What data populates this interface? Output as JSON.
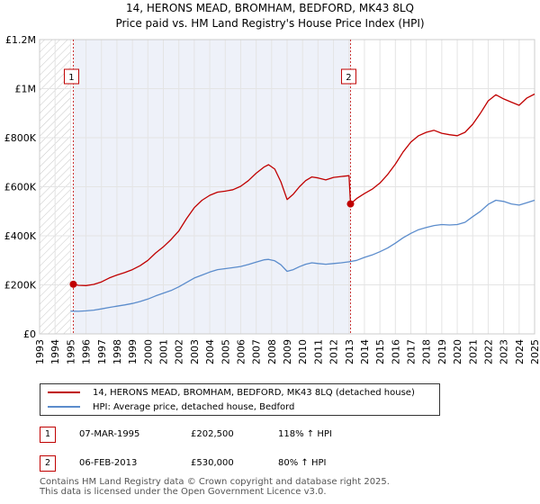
{
  "header": {
    "title": "14, HERONS MEAD, BROMHAM, BEDFORD, MK43 8LQ",
    "subtitle": "Price paid vs. HM Land Registry's House Price Index (HPI)"
  },
  "chart_data": {
    "type": "line",
    "title": "14, HERONS MEAD, BROMHAM, BEDFORD, MK43 8LQ",
    "subtitle": "Price paid vs. HM Land Registry's House Price Index (HPI)",
    "xlabel": "",
    "ylabel": "",
    "xlim": [
      1993,
      2025
    ],
    "ylim": [
      0,
      1200000
    ],
    "x_ticks": [
      "1993",
      "1994",
      "1995",
      "1996",
      "1997",
      "1998",
      "1999",
      "2000",
      "2001",
      "2002",
      "2003",
      "2004",
      "2005",
      "2006",
      "2007",
      "2008",
      "2009",
      "2010",
      "2011",
      "2012",
      "2013",
      "2014",
      "2015",
      "2016",
      "2017",
      "2018",
      "2019",
      "2020",
      "2021",
      "2022",
      "2023",
      "2024",
      "2025"
    ],
    "y_ticks": [
      {
        "value": 0,
        "label": "£0"
      },
      {
        "value": 200000,
        "label": "£200K"
      },
      {
        "value": 400000,
        "label": "£400K"
      },
      {
        "value": 600000,
        "label": "£600K"
      },
      {
        "value": 800000,
        "label": "£800K"
      },
      {
        "value": 1000000,
        "label": "£1M"
      },
      {
        "value": 1200000,
        "label": "£1.2M"
      }
    ],
    "grid": true,
    "legend_position": "below",
    "data_start": 1995.0,
    "data_end": 2025.0,
    "series": [
      {
        "name": "14, HERONS MEAD, BROMHAM, BEDFORD, MK43 8LQ (detached house)",
        "color": "#c00000",
        "points": [
          [
            1995.18,
            202500
          ],
          [
            1995.5,
            198000
          ],
          [
            1996.0,
            197000
          ],
          [
            1996.5,
            202000
          ],
          [
            1997.0,
            212000
          ],
          [
            1997.5,
            228000
          ],
          [
            1998.0,
            240000
          ],
          [
            1998.5,
            250000
          ],
          [
            1999.0,
            262000
          ],
          [
            1999.5,
            278000
          ],
          [
            2000.0,
            300000
          ],
          [
            2000.5,
            330000
          ],
          [
            2001.0,
            355000
          ],
          [
            2001.5,
            385000
          ],
          [
            2002.0,
            420000
          ],
          [
            2002.5,
            470000
          ],
          [
            2003.0,
            515000
          ],
          [
            2003.5,
            545000
          ],
          [
            2004.0,
            565000
          ],
          [
            2004.5,
            578000
          ],
          [
            2005.0,
            582000
          ],
          [
            2005.5,
            588000
          ],
          [
            2006.0,
            602000
          ],
          [
            2006.5,
            625000
          ],
          [
            2007.0,
            655000
          ],
          [
            2007.5,
            680000
          ],
          [
            2007.8,
            690000
          ],
          [
            2008.2,
            672000
          ],
          [
            2008.6,
            620000
          ],
          [
            2009.0,
            548000
          ],
          [
            2009.4,
            570000
          ],
          [
            2009.8,
            600000
          ],
          [
            2010.2,
            625000
          ],
          [
            2010.6,
            640000
          ],
          [
            2011.0,
            636000
          ],
          [
            2011.5,
            628000
          ],
          [
            2012.0,
            638000
          ],
          [
            2012.5,
            642000
          ],
          [
            2013.0,
            645000
          ],
          [
            2013.1,
            530000
          ],
          [
            2013.5,
            552000
          ],
          [
            2014.0,
            572000
          ],
          [
            2014.5,
            590000
          ],
          [
            2015.0,
            615000
          ],
          [
            2015.5,
            650000
          ],
          [
            2016.0,
            692000
          ],
          [
            2016.5,
            742000
          ],
          [
            2017.0,
            782000
          ],
          [
            2017.5,
            808000
          ],
          [
            2018.0,
            822000
          ],
          [
            2018.5,
            830000
          ],
          [
            2019.0,
            818000
          ],
          [
            2019.5,
            812000
          ],
          [
            2020.0,
            808000
          ],
          [
            2020.5,
            822000
          ],
          [
            2021.0,
            855000
          ],
          [
            2021.5,
            900000
          ],
          [
            2022.0,
            950000
          ],
          [
            2022.5,
            975000
          ],
          [
            2023.0,
            958000
          ],
          [
            2023.5,
            945000
          ],
          [
            2024.0,
            932000
          ],
          [
            2024.5,
            962000
          ],
          [
            2025.0,
            978000
          ]
        ]
      },
      {
        "name": "HPI: Average price, detached house, Bedford",
        "color": "#5b8ccc",
        "points": [
          [
            1995.0,
            93000
          ],
          [
            1995.5,
            92000
          ],
          [
            1996.0,
            94000
          ],
          [
            1996.5,
            97000
          ],
          [
            1997.0,
            102000
          ],
          [
            1997.5,
            108000
          ],
          [
            1998.0,
            113000
          ],
          [
            1998.5,
            118000
          ],
          [
            1999.0,
            124000
          ],
          [
            1999.5,
            132000
          ],
          [
            2000.0,
            142000
          ],
          [
            2000.5,
            155000
          ],
          [
            2001.0,
            166000
          ],
          [
            2001.5,
            177000
          ],
          [
            2002.0,
            192000
          ],
          [
            2002.5,
            210000
          ],
          [
            2003.0,
            228000
          ],
          [
            2003.5,
            240000
          ],
          [
            2004.0,
            252000
          ],
          [
            2004.5,
            262000
          ],
          [
            2005.0,
            266000
          ],
          [
            2005.5,
            270000
          ],
          [
            2006.0,
            275000
          ],
          [
            2006.5,
            283000
          ],
          [
            2007.0,
            293000
          ],
          [
            2007.5,
            302000
          ],
          [
            2007.8,
            304000
          ],
          [
            2008.2,
            298000
          ],
          [
            2008.6,
            282000
          ],
          [
            2009.0,
            255000
          ],
          [
            2009.4,
            262000
          ],
          [
            2009.8,
            274000
          ],
          [
            2010.2,
            284000
          ],
          [
            2010.6,
            290000
          ],
          [
            2011.0,
            287000
          ],
          [
            2011.5,
            284000
          ],
          [
            2012.0,
            287000
          ],
          [
            2012.5,
            290000
          ],
          [
            2013.0,
            294000
          ],
          [
            2013.5,
            300000
          ],
          [
            2014.0,
            312000
          ],
          [
            2014.5,
            322000
          ],
          [
            2015.0,
            335000
          ],
          [
            2015.5,
            350000
          ],
          [
            2016.0,
            370000
          ],
          [
            2016.5,
            392000
          ],
          [
            2017.0,
            410000
          ],
          [
            2017.5,
            425000
          ],
          [
            2018.0,
            434000
          ],
          [
            2018.5,
            442000
          ],
          [
            2019.0,
            446000
          ],
          [
            2019.5,
            444000
          ],
          [
            2020.0,
            446000
          ],
          [
            2020.5,
            455000
          ],
          [
            2021.0,
            478000
          ],
          [
            2021.5,
            500000
          ],
          [
            2022.0,
            528000
          ],
          [
            2022.5,
            545000
          ],
          [
            2023.0,
            540000
          ],
          [
            2023.5,
            530000
          ],
          [
            2024.0,
            525000
          ],
          [
            2024.5,
            535000
          ],
          [
            2025.0,
            545000
          ]
        ]
      }
    ],
    "annotations": [
      {
        "label": "1",
        "x": 1995.18,
        "y": 202500
      },
      {
        "label": "2",
        "x": 2013.1,
        "y": 530000
      }
    ]
  },
  "legend": {
    "items": [
      {
        "label": "14, HERONS MEAD, BROMHAM, BEDFORD, MK43 8LQ (detached house)",
        "color": "#c00000"
      },
      {
        "label": "HPI: Average price, detached house, Bedford",
        "color": "#5b8ccc"
      }
    ]
  },
  "sales": [
    {
      "num": "1",
      "date": "07-MAR-1995",
      "price": "£202,500",
      "hpi": "118% ↑ HPI"
    },
    {
      "num": "2",
      "date": "06-FEB-2013",
      "price": "£530,000",
      "hpi": "80% ↑ HPI"
    }
  ],
  "footer": {
    "line1": "Contains HM Land Registry data © Crown copyright and database right 2025.",
    "line2": "This data is licensed under the Open Government Licence v3.0."
  }
}
